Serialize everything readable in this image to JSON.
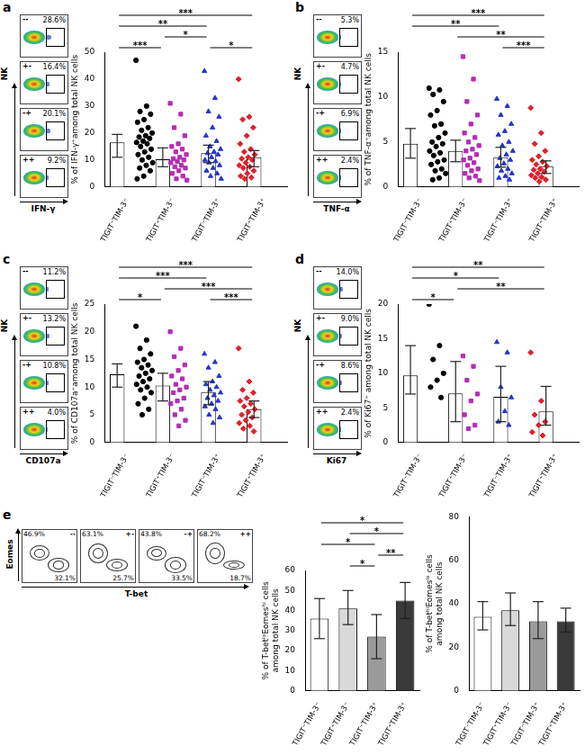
{
  "chart_data": [
    {
      "panel": "a",
      "type": "bar",
      "y_label": "% of IFN-γ⁺among total NK cells",
      "categories": [
        "TIGIT⁻TIM-3⁻",
        "TIGIT⁺TIM-3⁻",
        "TIGIT⁻TIM-3⁺",
        "TIGIT⁺TIM-3⁺"
      ],
      "values": [
        16.5,
        10.3,
        12.5,
        11
      ],
      "error_low": [
        11,
        7.5,
        9,
        7.5
      ],
      "error_high": [
        19.5,
        14.5,
        15.5,
        13.5
      ],
      "color": "#ffffff",
      "ylim": [
        0,
        50
      ],
      "yticks": [
        0,
        10,
        20,
        30,
        40,
        50
      ],
      "grid": false,
      "points": [
        {
          "color": "#000000",
          "marker": "circle",
          "values": [
            47,
            30,
            28,
            27,
            25,
            24,
            22,
            21,
            20,
            19,
            18.5,
            18,
            17,
            16.5,
            16,
            15,
            14,
            13,
            12,
            11,
            10,
            9,
            8,
            7,
            6,
            4,
            3
          ]
        },
        {
          "color": "#b52db5",
          "marker": "square",
          "values": [
            31,
            27,
            22,
            19,
            16,
            15,
            14,
            13,
            12,
            11,
            10.5,
            10,
            9.5,
            9,
            8,
            7.5,
            7,
            6,
            5,
            4,
            3,
            2.5
          ]
        },
        {
          "color": "#2535c8",
          "marker": "triangle",
          "values": [
            43,
            33,
            28,
            26,
            22,
            19,
            17,
            15,
            14,
            13,
            12.5,
            12,
            11,
            10,
            9.5,
            9,
            8,
            7,
            6,
            5,
            4,
            3
          ]
        },
        {
          "color": "#e0202a",
          "marker": "diamond",
          "values": [
            40,
            26,
            25,
            22,
            19,
            16,
            14,
            13,
            12,
            11,
            10.5,
            10,
            9,
            8,
            7.5,
            7,
            6,
            5,
            4,
            3.5,
            3
          ]
        }
      ],
      "brackets": [
        {
          "from": 0,
          "to": 1,
          "label": "***"
        },
        {
          "from": 1,
          "to": 2,
          "label": "*"
        },
        {
          "from": 2,
          "to": 3,
          "label": "*"
        },
        {
          "from": 0,
          "to": 2,
          "label": "**"
        },
        {
          "from": 0,
          "to": 3,
          "label": "***"
        }
      ],
      "flow": {
        "y_label": "NK",
        "x_label": "IFN-γ",
        "names": [
          "--",
          "+-",
          "-+",
          "++"
        ],
        "values": [
          28.6,
          16.4,
          20.1,
          9.2
        ],
        "value_labels": [
          "28.6%",
          "16.4%",
          "20.1%",
          "9.2%"
        ]
      }
    },
    {
      "panel": "b",
      "type": "bar",
      "y_label": "% of TNF-α⁺among total NK cells",
      "categories": [
        "TIGIT⁻TIM-3⁻",
        "TIGIT⁺TIM-3⁻",
        "TIGIT⁻TIM-3⁺",
        "TIGIT⁺TIM-3⁺"
      ],
      "values": [
        4.8,
        4.0,
        3.3,
        2.3
      ],
      "error_low": [
        3.2,
        2.8,
        2.2,
        1.5
      ],
      "error_high": [
        6.5,
        5.2,
        4.4,
        2.9
      ],
      "color": "#ffffff",
      "ylim": [
        0,
        15
      ],
      "yticks": [
        0,
        5,
        10,
        15
      ],
      "grid": false,
      "points": [
        {
          "color": "#000000",
          "marker": "circle",
          "values": [
            11,
            10.8,
            10.3,
            9.5,
            8.5,
            8,
            7,
            6.8,
            6,
            5.5,
            5,
            4.8,
            4.5,
            4,
            3.8,
            3.5,
            3,
            2.8,
            2.5,
            2,
            1.8,
            1.5,
            1,
            0.8
          ]
        },
        {
          "color": "#b52db5",
          "marker": "square",
          "values": [
            14.5,
            12,
            9.5,
            8,
            7,
            6,
            5.5,
            5,
            4.6,
            4.2,
            4,
            3.6,
            3.2,
            3,
            2.7,
            2.4,
            2,
            1.8,
            1.5,
            1.2,
            1,
            0.7
          ]
        },
        {
          "color": "#2535c8",
          "marker": "triangle",
          "values": [
            9.8,
            9,
            8,
            7,
            6.2,
            5.8,
            5,
            4.6,
            4,
            3.6,
            3.2,
            3,
            2.6,
            2.3,
            2,
            1.8,
            1.5,
            1.2,
            1,
            0.8
          ]
        },
        {
          "color": "#e0202a",
          "marker": "diamond",
          "values": [
            8.8,
            6,
            4.8,
            4,
            3.4,
            3,
            2.8,
            2.5,
            2.3,
            2,
            1.9,
            1.7,
            1.5,
            1.3,
            1.1,
            1,
            0.8,
            0.6
          ]
        }
      ],
      "brackets": [
        {
          "from": 2,
          "to": 3,
          "label": "***"
        },
        {
          "from": 1,
          "to": 3,
          "label": "**"
        },
        {
          "from": 0,
          "to": 2,
          "label": "**"
        },
        {
          "from": 0,
          "to": 3,
          "label": "***"
        }
      ],
      "flow": {
        "y_label": "NK",
        "x_label": "TNF-α",
        "names": [
          "--",
          "+-",
          "-+",
          "++"
        ],
        "values": [
          5.3,
          4.7,
          6.9,
          2.4
        ],
        "value_labels": [
          "5.3%",
          "4.7%",
          "6.9%",
          "2.4%"
        ]
      }
    },
    {
      "panel": "c",
      "type": "bar",
      "y_label": "% of CD107a⁺among total NK cells",
      "categories": [
        "TIGIT⁻TIM-3⁻",
        "TIGIT⁺TIM-3⁻",
        "TIGIT⁻TIM-3⁺",
        "TIGIT⁺TIM-3⁺"
      ],
      "values": [
        12.3,
        10.3,
        9.1,
        6.0
      ],
      "error_low": [
        10,
        7.5,
        6.8,
        4.5
      ],
      "error_high": [
        14.2,
        12.5,
        11,
        7.5
      ],
      "color": "#ffffff",
      "ylim": [
        0,
        25
      ],
      "yticks": [
        0,
        5,
        10,
        15,
        20,
        25
      ],
      "grid": false,
      "points": [
        {
          "color": "#000000",
          "marker": "circle",
          "values": [
            21,
            18.5,
            17,
            16,
            15,
            14.5,
            14,
            13.5,
            13,
            12.5,
            12,
            11.5,
            11,
            10.5,
            10,
            9.5,
            9,
            8,
            7,
            6,
            5
          ]
        },
        {
          "color": "#b52db5",
          "marker": "square",
          "values": [
            20,
            17,
            15.5,
            14,
            13,
            12,
            11.5,
            10.5,
            10,
            9.5,
            9,
            8,
            7.5,
            7,
            6,
            5,
            4,
            3
          ]
        },
        {
          "color": "#2535c8",
          "marker": "triangle",
          "values": [
            16,
            14.5,
            13.5,
            12,
            11,
            10.5,
            10,
            9.5,
            9,
            8.5,
            8,
            7.5,
            7,
            6.5,
            6,
            5,
            4.5,
            3.5
          ]
        },
        {
          "color": "#e0202a",
          "marker": "diamond",
          "values": [
            17,
            11,
            9.5,
            9,
            8,
            7.5,
            7,
            6.5,
            6,
            5.5,
            5,
            4.5,
            4,
            3.5,
            3,
            2.5,
            2
          ]
        }
      ],
      "brackets": [
        {
          "from": 0,
          "to": 1,
          "label": "*"
        },
        {
          "from": 2,
          "to": 3,
          "label": "***"
        },
        {
          "from": 1,
          "to": 3,
          "label": "***"
        },
        {
          "from": 0,
          "to": 2,
          "label": "***"
        },
        {
          "from": 0,
          "to": 3,
          "label": "***"
        }
      ],
      "flow": {
        "y_label": "NK",
        "x_label": "CD107a",
        "names": [
          "--",
          "+-",
          "-+",
          "++"
        ],
        "values": [
          11.2,
          13.2,
          10.8,
          4.0
        ],
        "value_labels": [
          "11.2%",
          "13.2%",
          "10.8%",
          "4.0%"
        ]
      }
    },
    {
      "panel": "d",
      "type": "bar",
      "y_label": "% of Ki67⁺ among total NK cells",
      "categories": [
        "TIGIT⁻TIM-3⁻",
        "TIGIT⁺TIM-3⁻",
        "TIGIT⁻TIM-3⁺",
        "TIGIT⁺TIM-3⁺"
      ],
      "values": [
        9.7,
        7.1,
        6.6,
        4.5
      ],
      "error_low": [
        7,
        3,
        3,
        2.5
      ],
      "error_high": [
        14,
        11.7,
        11,
        8.1
      ],
      "color": "#ffffff",
      "ylim": [
        0,
        20
      ],
      "yticks": [
        0,
        5,
        10,
        15,
        20
      ],
      "grid": false,
      "points": [
        {
          "color": "#000000",
          "marker": "circle",
          "values": [
            20,
            14,
            12,
            10,
            9,
            8,
            6.5
          ]
        },
        {
          "color": "#b52db5",
          "marker": "square",
          "values": [
            12.5,
            11,
            9,
            7,
            6,
            4,
            2.5,
            2
          ]
        },
        {
          "color": "#2535c8",
          "marker": "triangle",
          "values": [
            14.5,
            13,
            8,
            6.5,
            4.5,
            3,
            2.5
          ]
        },
        {
          "color": "#e0202a",
          "marker": "diamond",
          "values": [
            13,
            6,
            4,
            3,
            2.5,
            1.5,
            1
          ]
        }
      ],
      "brackets": [
        {
          "from": 0,
          "to": 1,
          "label": "*"
        },
        {
          "from": 1,
          "to": 3,
          "label": "**"
        },
        {
          "from": 0,
          "to": 2,
          "label": "*"
        },
        {
          "from": 0,
          "to": 3,
          "label": "**"
        }
      ],
      "flow": {
        "y_label": "NK",
        "x_label": "Ki67",
        "names": [
          "--",
          "+-",
          "-+",
          "++"
        ],
        "values": [
          14.0,
          9.0,
          8.6,
          2.4
        ],
        "value_labels": [
          "14.0%",
          "9.0%",
          "8.6%",
          "2.4%"
        ]
      }
    },
    {
      "panel": "e",
      "type": "bar",
      "y_label": "% of T-betˡᵒEomesʰⁱ cells among total NK cells",
      "categories": [
        "TIGIT⁻TIM-3⁻",
        "TIGIT⁺TIM-3⁻",
        "TIGIT⁻TIM-3⁺",
        "TIGIT⁺TIM-3⁺"
      ],
      "values": [
        36,
        41,
        27,
        45
      ],
      "error_low": [
        26,
        33,
        16,
        36
      ],
      "error_high": [
        46,
        50,
        38,
        54
      ],
      "colors": [
        "#ffffff",
        "#d9d9d9",
        "#9a9a9a",
        "#3a3a3a"
      ],
      "ylim": [
        0,
        60
      ],
      "yticks": [
        0,
        10,
        20,
        30,
        40,
        50,
        60
      ],
      "grid": false,
      "brackets": [
        {
          "from": 1,
          "to": 2,
          "label": "*"
        },
        {
          "from": 2,
          "to": 3,
          "label": "**"
        },
        {
          "from": 0,
          "to": 2,
          "label": "*"
        },
        {
          "from": 1,
          "to": 3,
          "label": "*"
        },
        {
          "from": 0,
          "to": 3,
          "label": "*"
        }
      ],
      "flow": {
        "y_label": "Eomes",
        "x_label": "T-bet",
        "names": [
          "--",
          "+-",
          "-+",
          "++"
        ],
        "upper_values": [
          46.9,
          63.1,
          43.8,
          68.2
        ],
        "upper_labels": [
          "46.9%",
          "63.1%",
          "43.8%",
          "68.2%"
        ],
        "lower_values": [
          32.1,
          25.7,
          33.5,
          18.7
        ],
        "lower_labels": [
          "32.1%",
          "25.7%",
          "33.5%",
          "18.7%"
        ]
      }
    },
    {
      "type": "bar",
      "y_label": "% of T-betʰⁱEomesˡᵒ cells among total NK cells",
      "categories": [
        "TIGIT⁻TIM-3⁻",
        "TIGIT⁺TIM-3⁻",
        "TIGIT⁻TIM-3⁺",
        "TIGIT⁺TIM-3⁺"
      ],
      "values": [
        34,
        37,
        32,
        32
      ],
      "error_low": [
        28,
        30,
        24,
        27
      ],
      "error_high": [
        41,
        45,
        41,
        38
      ],
      "colors": [
        "#ffffff",
        "#d9d9d9",
        "#9a9a9a",
        "#3a3a3a"
      ],
      "ylim": [
        0,
        80
      ],
      "yticks": [
        0,
        20,
        40,
        60,
        80
      ],
      "grid": false
    }
  ]
}
